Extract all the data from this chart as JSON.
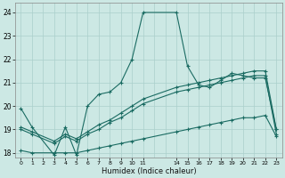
{
  "title": "",
  "xlabel": "Humidex (Indice chaleur)",
  "ylabel": "",
  "bg_color": "#cce8e4",
  "grid_color": "#aacfcb",
  "line_color": "#1a6b62",
  "xlim": [
    -0.5,
    23.5
  ],
  "ylim": [
    17.8,
    24.4
  ],
  "yticks": [
    18,
    19,
    20,
    21,
    22,
    23,
    24
  ],
  "xticks": [
    0,
    1,
    2,
    3,
    4,
    5,
    6,
    7,
    8,
    9,
    10,
    11,
    14,
    15,
    16,
    17,
    18,
    19,
    20,
    21,
    22,
    23
  ],
  "xtick_labels": [
    "0",
    "1",
    "2",
    "3",
    "4",
    "5",
    "6",
    "7",
    "8",
    "9",
    "10",
    "11",
    "14",
    "15",
    "16",
    "17",
    "18",
    "19",
    "20",
    "21",
    "22",
    "23"
  ],
  "series": [
    {
      "x": [
        0,
        1,
        3,
        4,
        5,
        6,
        7,
        8,
        9,
        10,
        11,
        14,
        15,
        16,
        17,
        18,
        19,
        20,
        21,
        22,
        23
      ],
      "y": [
        19.9,
        19.1,
        17.9,
        19.1,
        17.9,
        20.0,
        20.5,
        20.6,
        21.0,
        22.0,
        24.0,
        24.0,
        21.7,
        20.9,
        20.8,
        21.1,
        21.4,
        21.3,
        21.2,
        21.2,
        19.0
      ]
    },
    {
      "x": [
        0,
        1,
        3,
        4,
        5,
        6,
        7,
        8,
        9,
        10,
        11,
        14,
        15,
        16,
        17,
        18,
        19,
        20,
        21,
        22,
        23
      ],
      "y": [
        19.1,
        18.9,
        18.5,
        18.8,
        18.6,
        18.9,
        19.2,
        19.4,
        19.7,
        20.0,
        20.3,
        20.8,
        20.9,
        21.0,
        21.1,
        21.2,
        21.3,
        21.4,
        21.5,
        21.5,
        19.0
      ]
    },
    {
      "x": [
        0,
        1,
        3,
        4,
        5,
        6,
        7,
        8,
        9,
        10,
        11,
        14,
        15,
        16,
        17,
        18,
        19,
        20,
        21,
        22,
        23
      ],
      "y": [
        19.0,
        18.8,
        18.4,
        18.7,
        18.5,
        18.8,
        19.0,
        19.3,
        19.5,
        19.8,
        20.1,
        20.6,
        20.7,
        20.8,
        20.9,
        21.0,
        21.1,
        21.2,
        21.3,
        21.3,
        18.8
      ]
    },
    {
      "x": [
        0,
        1,
        3,
        4,
        5,
        6,
        7,
        8,
        9,
        10,
        11,
        14,
        15,
        16,
        17,
        18,
        19,
        20,
        21,
        22,
        23
      ],
      "y": [
        18.1,
        18.0,
        18.0,
        18.0,
        18.0,
        18.1,
        18.2,
        18.3,
        18.4,
        18.5,
        18.6,
        18.9,
        19.0,
        19.1,
        19.2,
        19.3,
        19.4,
        19.5,
        19.5,
        19.6,
        18.7
      ]
    }
  ]
}
